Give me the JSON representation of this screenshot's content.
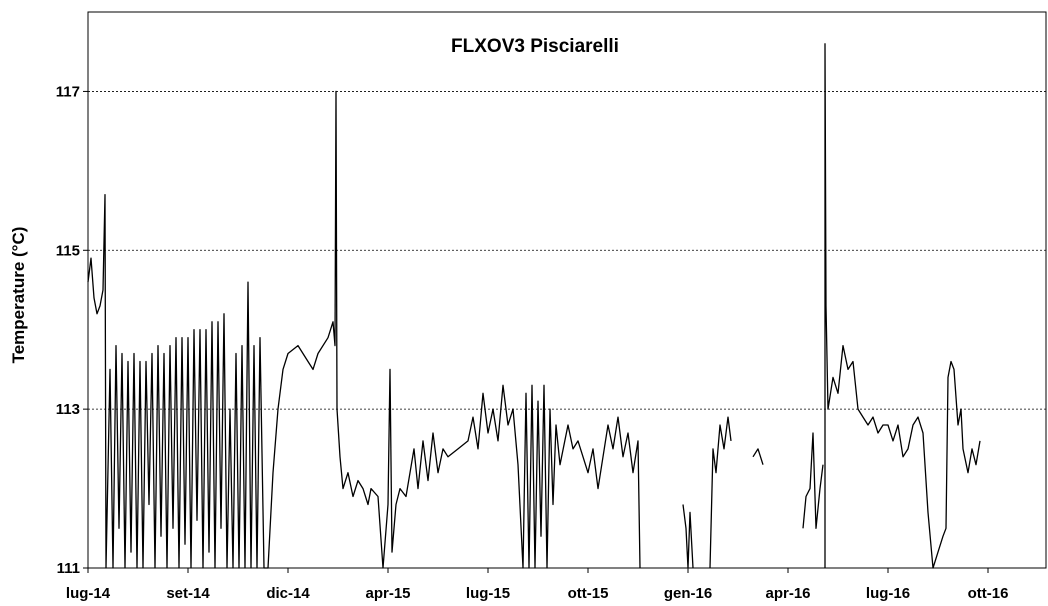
{
  "chart_data": {
    "type": "line",
    "title": "FLXOV3 Pisciarelli",
    "y_label": "Temperature (°C)",
    "color": "#000000",
    "grid": true,
    "xlim": [
      0,
      9.58
    ],
    "ylim": [
      111,
      118
    ],
    "yticks": [
      111,
      113,
      115,
      117
    ],
    "xticks": [
      {
        "value": 0,
        "label": "lug-14"
      },
      {
        "value": 1,
        "label": "set-14"
      },
      {
        "value": 2,
        "label": "dic-14"
      },
      {
        "value": 3,
        "label": "apr-15"
      },
      {
        "value": 4,
        "label": "lug-15"
      },
      {
        "value": 5,
        "label": "ott-15"
      },
      {
        "value": 6,
        "label": "gen-16"
      },
      {
        "value": 7,
        "label": "apr-16"
      },
      {
        "value": 8,
        "label": "lug-16"
      },
      {
        "value": 9,
        "label": "ott-16"
      }
    ],
    "x": [
      0.0,
      0.03,
      0.06,
      0.09,
      0.12,
      0.15,
      0.17,
      0.18,
      0.22,
      0.25,
      0.28,
      0.31,
      0.34,
      0.37,
      0.4,
      0.43,
      0.46,
      0.49,
      0.52,
      0.55,
      0.58,
      0.61,
      0.64,
      0.67,
      0.7,
      0.73,
      0.76,
      0.79,
      0.82,
      0.85,
      0.88,
      0.91,
      0.94,
      0.97,
      1.0,
      1.03,
      1.06,
      1.09,
      1.12,
      1.15,
      1.18,
      1.21,
      1.24,
      1.27,
      1.3,
      1.33,
      1.36,
      1.39,
      1.42,
      1.45,
      1.48,
      1.51,
      1.54,
      1.57,
      1.6,
      1.63,
      1.66,
      1.69,
      1.72,
      1.76,
      1.8,
      1.85,
      1.9,
      1.95,
      2.0,
      2.1,
      2.2,
      2.25,
      2.3,
      2.4,
      2.45,
      2.47,
      2.48,
      2.49,
      2.52,
      2.55,
      2.6,
      2.65,
      2.7,
      2.75,
      2.8,
      2.83,
      2.9,
      2.95,
      3.0,
      3.02,
      3.04,
      3.08,
      3.12,
      3.18,
      3.22,
      3.26,
      3.3,
      3.35,
      3.4,
      3.45,
      3.5,
      3.55,
      3.6,
      3.7,
      3.8,
      3.85,
      3.9,
      3.95,
      4.0,
      4.05,
      4.1,
      4.15,
      4.2,
      4.25,
      4.3,
      4.35,
      4.38,
      4.41,
      4.44,
      4.47,
      4.5,
      4.53,
      4.56,
      4.59,
      4.62,
      4.65,
      4.68,
      4.72,
      4.8,
      4.85,
      4.9,
      5.0,
      5.05,
      5.1,
      5.15,
      5.2,
      5.25,
      5.3,
      5.35,
      5.4,
      5.45,
      5.5,
      5.52,
      5.7,
      5.95,
      5.98,
      6.0,
      6.02,
      6.05,
      6.15,
      6.22,
      6.25,
      6.28,
      6.32,
      6.36,
      6.4,
      6.43,
      6.55,
      6.65,
      6.7,
      6.75,
      6.95,
      7.15,
      7.18,
      7.22,
      7.25,
      7.28,
      7.32,
      7.35,
      7.36,
      7.37,
      7.37,
      7.38,
      7.4,
      7.45,
      7.5,
      7.55,
      7.6,
      7.65,
      7.7,
      7.75,
      7.8,
      7.85,
      7.9,
      7.95,
      8.0,
      8.05,
      8.1,
      8.15,
      8.2,
      8.25,
      8.3,
      8.35,
      8.4,
      8.45,
      8.5,
      8.55,
      8.58,
      8.6,
      8.63,
      8.66,
      8.7,
      8.73,
      8.75,
      8.8,
      8.84,
      8.88,
      8.92
    ],
    "values": [
      114.6,
      114.9,
      114.4,
      114.2,
      114.3,
      114.5,
      115.7,
      111.0,
      113.5,
      111.0,
      113.8,
      111.5,
      113.7,
      111.0,
      113.6,
      111.2,
      113.7,
      111.0,
      113.6,
      111.0,
      113.6,
      111.8,
      113.7,
      111.0,
      113.8,
      111.4,
      113.7,
      111.0,
      113.8,
      111.5,
      113.9,
      111.0,
      113.9,
      111.3,
      113.9,
      111.0,
      114.0,
      111.6,
      114.0,
      111.0,
      114.0,
      111.2,
      114.1,
      111.0,
      114.1,
      111.5,
      114.2,
      111.0,
      113.0,
      111.0,
      113.7,
      111.0,
      113.8,
      111.0,
      114.6,
      111.0,
      113.8,
      111.0,
      113.9,
      111.0,
      111.0,
      112.2,
      113.0,
      113.5,
      113.7,
      113.8,
      113.6,
      113.5,
      113.7,
      113.9,
      114.1,
      113.8,
      117.0,
      113.0,
      112.4,
      112.0,
      112.2,
      111.9,
      112.1,
      112.0,
      111.8,
      112.0,
      111.9,
      111.0,
      111.8,
      113.5,
      111.2,
      111.8,
      112.0,
      111.9,
      112.2,
      112.5,
      112.0,
      112.6,
      112.1,
      112.7,
      112.2,
      112.5,
      112.4,
      112.5,
      112.6,
      112.9,
      112.5,
      113.2,
      112.7,
      113.0,
      112.6,
      113.3,
      112.8,
      113.0,
      112.3,
      111.0,
      113.2,
      111.0,
      113.3,
      111.0,
      113.1,
      111.4,
      113.3,
      111.0,
      113.0,
      111.8,
      112.8,
      112.3,
      112.8,
      112.5,
      112.6,
      112.2,
      112.5,
      112.0,
      112.4,
      112.8,
      112.5,
      112.9,
      112.4,
      112.7,
      112.2,
      112.6,
      111.0,
      null,
      111.8,
      111.5,
      111.0,
      111.7,
      111.0,
      null,
      111.0,
      112.5,
      112.2,
      112.8,
      112.5,
      112.9,
      112.6,
      null,
      112.4,
      112.5,
      112.3,
      null,
      111.5,
      111.9,
      112.0,
      112.7,
      111.5,
      112.0,
      112.3,
      null,
      111.0,
      117.6,
      114.3,
      113.0,
      113.4,
      113.2,
      113.8,
      113.5,
      113.6,
      113.0,
      112.9,
      112.8,
      112.9,
      112.7,
      112.8,
      112.8,
      112.6,
      112.8,
      112.4,
      112.5,
      112.8,
      112.9,
      112.7,
      111.7,
      111.0,
      111.2,
      111.4,
      111.5,
      113.4,
      113.6,
      113.5,
      112.8,
      113.0,
      112.5,
      112.2,
      112.5,
      112.3,
      112.6
    ]
  }
}
